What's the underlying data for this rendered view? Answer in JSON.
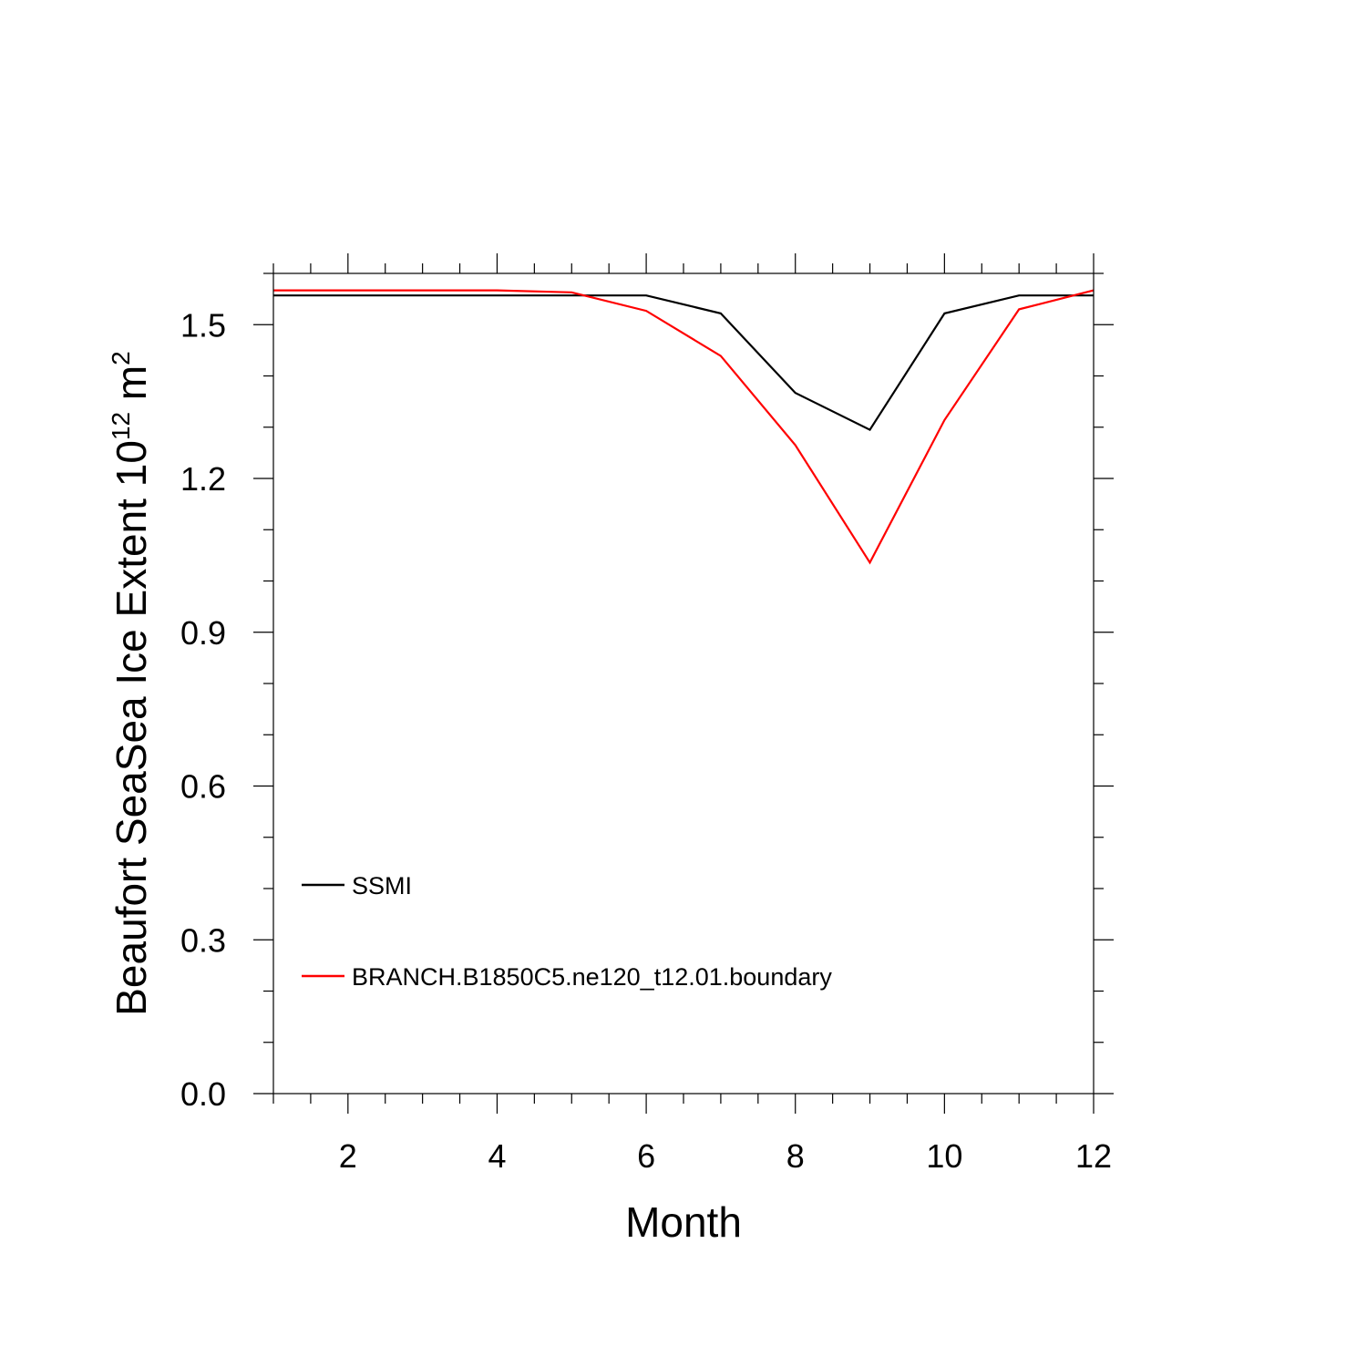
{
  "chart_data": {
    "type": "line",
    "xlabel": "Month",
    "ylabel": {
      "prefix": "Beaufort SeaSea Ice Extent 10",
      "exponent": "12",
      "unit": " m",
      "unit_exponent": "2"
    },
    "xlim": [
      1,
      12
    ],
    "ylim": [
      0,
      1.6
    ],
    "x_ticks": [
      2,
      4,
      6,
      8,
      10,
      12
    ],
    "x_tick_labels": [
      "2",
      "4",
      "6",
      "8",
      "10",
      "12"
    ],
    "y_ticks": [
      0,
      0.3,
      0.6,
      0.9,
      1.2,
      1.5
    ],
    "y_tick_labels": [
      "0.0",
      "0.3",
      "0.6",
      "0.9",
      "1.2",
      "1.5"
    ],
    "grid": false,
    "legend_position": "bottom-left",
    "x": [
      1,
      2,
      3,
      4,
      5,
      6,
      7,
      8,
      9,
      10,
      11,
      12
    ],
    "series": [
      {
        "name": "SSMI",
        "color": "#000000",
        "values": [
          1.557,
          1.557,
          1.557,
          1.557,
          1.557,
          1.557,
          1.522,
          1.367,
          1.295,
          1.522,
          1.557,
          1.557
        ]
      },
      {
        "name": "BRANCH.B1850C5.ne120_t12.01.boundary",
        "color": "#ff0000",
        "values": [
          1.567,
          1.567,
          1.567,
          1.567,
          1.563,
          1.527,
          1.439,
          1.265,
          1.036,
          1.314,
          1.53,
          1.567
        ]
      }
    ]
  }
}
